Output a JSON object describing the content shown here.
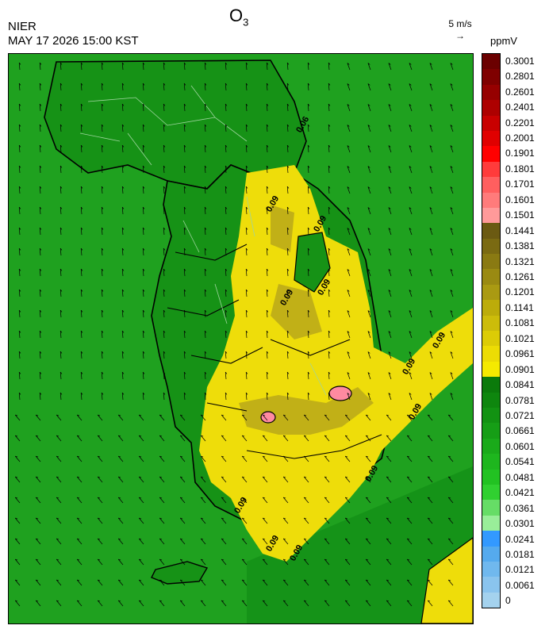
{
  "header": {
    "agency": "NIER",
    "timestamp": "MAY 17 2026 15:00 KST",
    "title_main": "O",
    "title_sub": "3",
    "reference_vector": "5 m/s",
    "reference_arrow": "→",
    "units": "ppmV"
  },
  "contour_labels": [
    "0.06",
    "0.09",
    "0.09",
    "0.09",
    "0.09",
    "0.09",
    "0.09",
    "0.09",
    "0.09",
    "0.09",
    "0.09",
    "0.09"
  ],
  "colorbar": {
    "labels": [
      "0.3001",
      "0.2801",
      "0.2601",
      "0.2401",
      "0.2201",
      "0.2001",
      "0.1901",
      "0.1801",
      "0.1701",
      "0.1601",
      "0.1501",
      "0.1441",
      "0.1381",
      "0.1321",
      "0.1261",
      "0.1201",
      "0.1141",
      "0.1081",
      "0.1021",
      "0.0961",
      "0.0901",
      "0.0841",
      "0.0781",
      "0.0721",
      "0.0661",
      "0.0601",
      "0.0541",
      "0.0481",
      "0.0421",
      "0.0361",
      "0.0301",
      "0.0241",
      "0.0181",
      "0.0121",
      "0.0061",
      "0"
    ],
    "colors": [
      "#6b0000",
      "#7f0000",
      "#960000",
      "#ad0000",
      "#c80000",
      "#e00000",
      "#ff0000",
      "#ff3b3b",
      "#ff5f5f",
      "#ff7b7b",
      "#ff9a9a",
      "#6b5a12",
      "#7a6a12",
      "#8a7a12",
      "#9a8a12",
      "#aa9a12",
      "#bcac0a",
      "#ccbc0a",
      "#dccc06",
      "#ecdc04",
      "#f5ea00",
      "#0b7a0b",
      "#0e860e",
      "#129212",
      "#169e16",
      "#1aaa1a",
      "#1eb61e",
      "#22c222",
      "#30d030",
      "#66dd66",
      "#99ee99",
      "#3399ff",
      "#55aaee",
      "#70b8ee",
      "#8ac4ee",
      "#a4d2ee"
    ]
  },
  "colors": {
    "sea_green": "#1fa11f",
    "land_green": "#169216",
    "ozone_yellow": "#eedd0a",
    "ozone_olive": "#b8a81a",
    "hotspot_pink": "#ff8aa0"
  }
}
